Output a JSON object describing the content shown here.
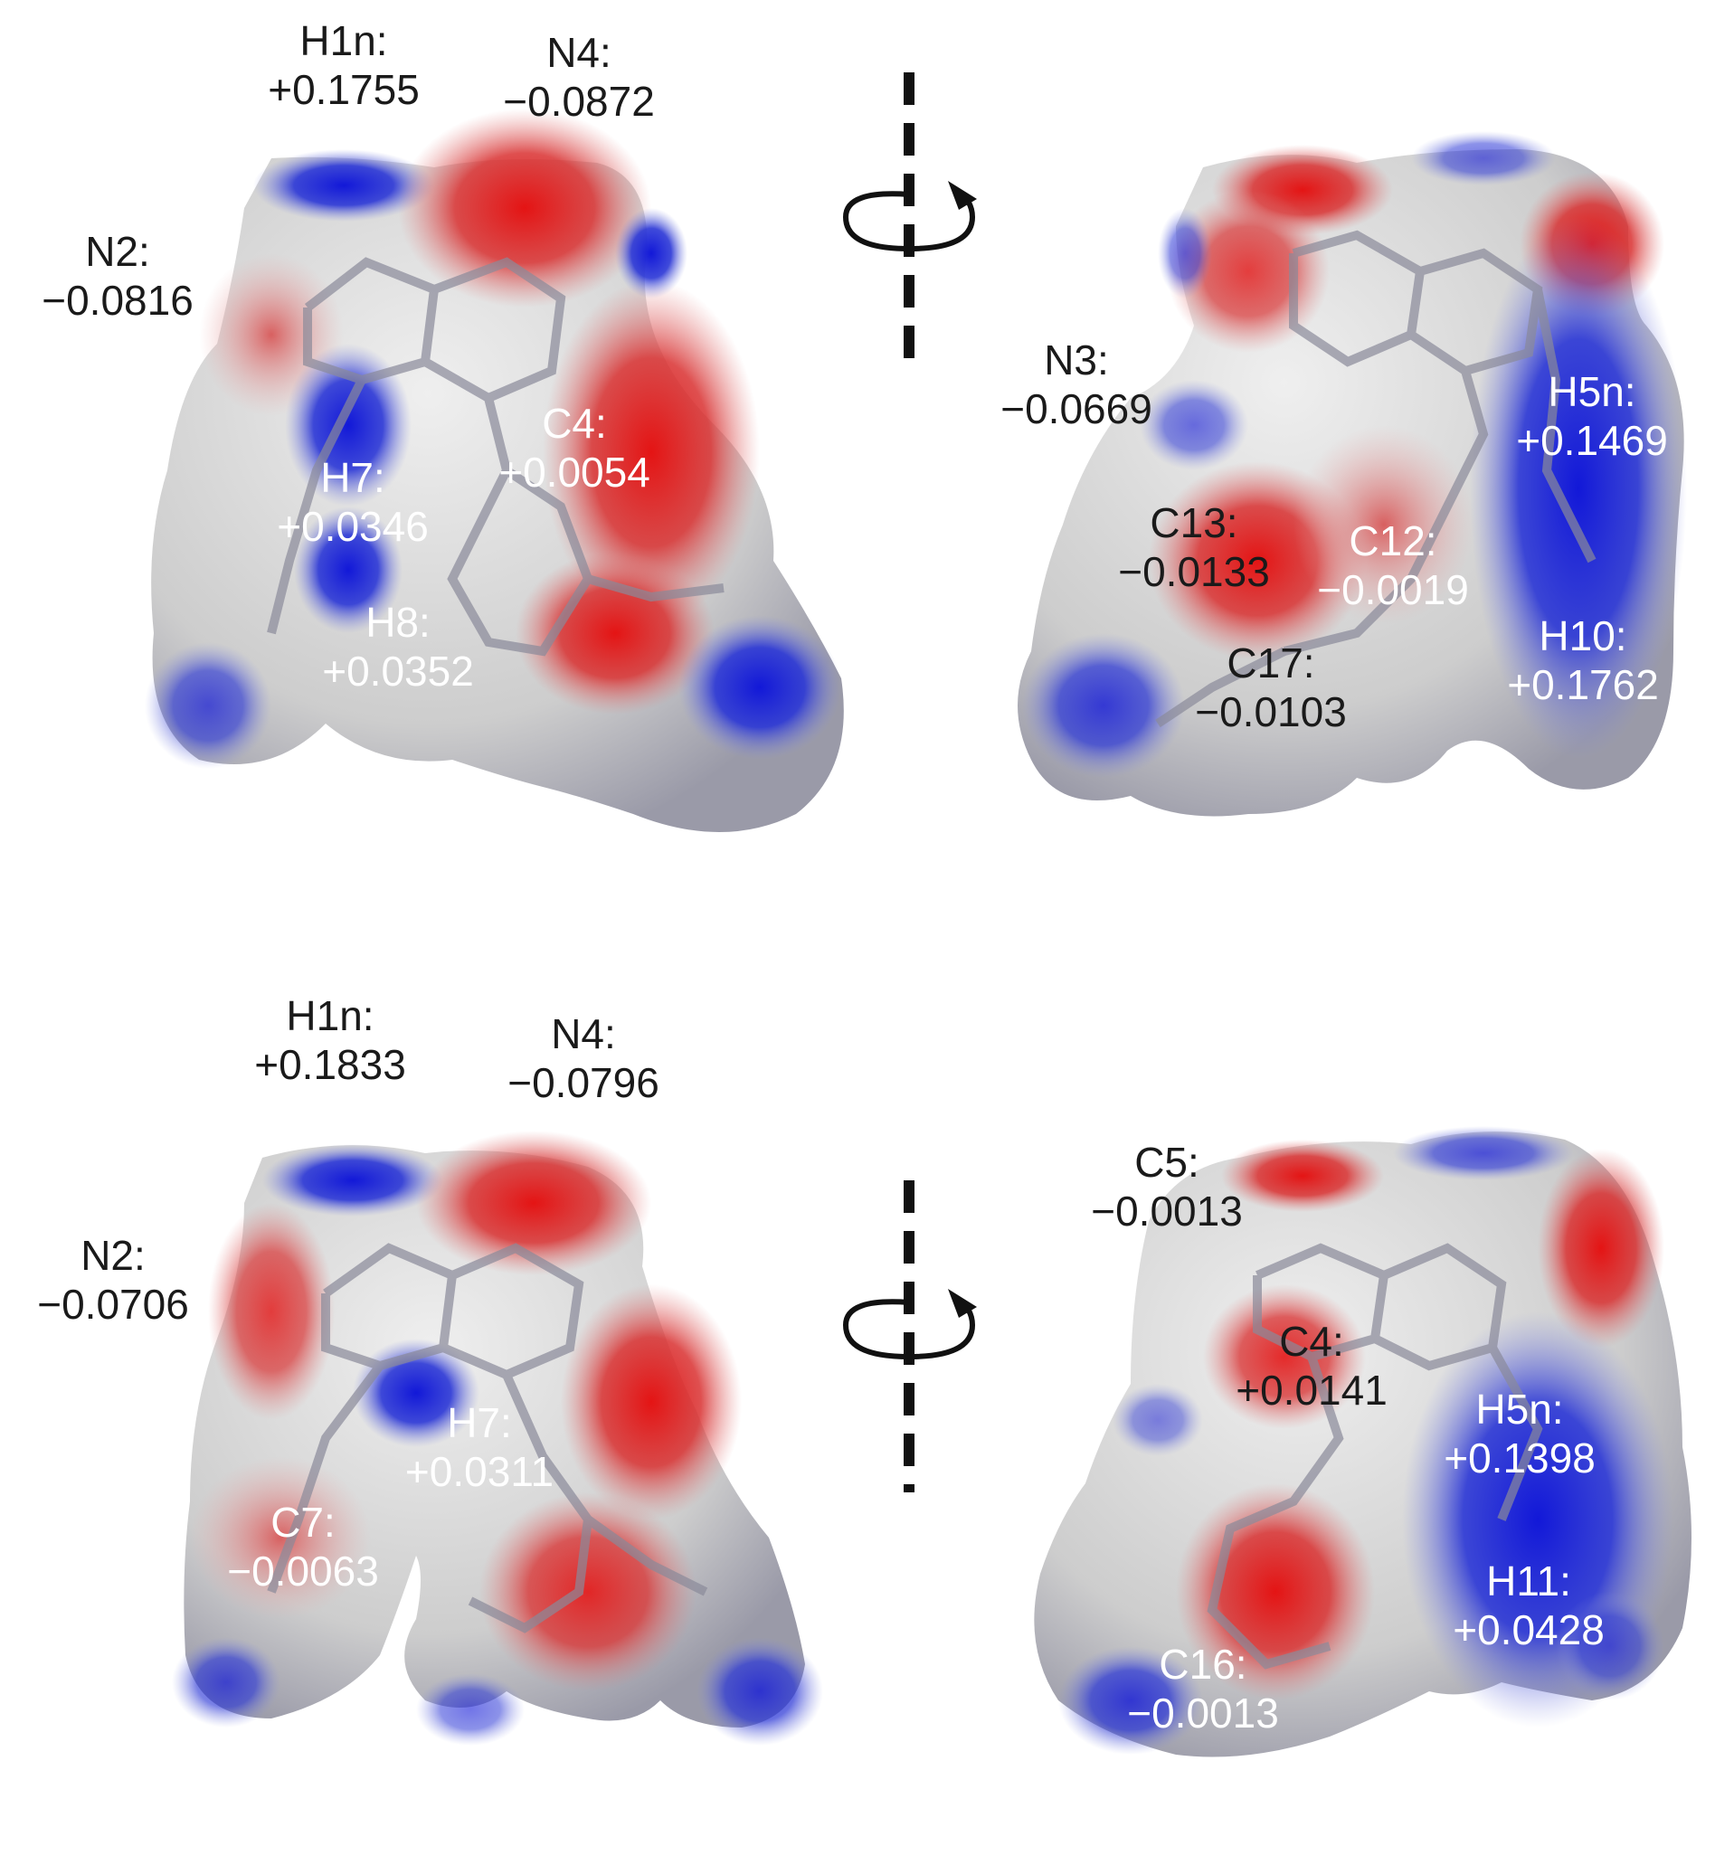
{
  "labels": {
    "p1_h1n": {
      "name": "H1n:",
      "value": "+0.1755"
    },
    "p1_n4": {
      "name": "N4:",
      "value": "−0.0872"
    },
    "p1_n2": {
      "name": "N2:",
      "value": "−0.0816"
    },
    "p1_h7": {
      "name": "H7:",
      "value": "+0.0346"
    },
    "p1_c4": {
      "name": "C4:",
      "value": "+0.0054"
    },
    "p1_h8": {
      "name": "H8:",
      "value": "+0.0352"
    },
    "p2_n3": {
      "name": "N3:",
      "value": "−0.0669"
    },
    "p2_h5n": {
      "name": "H5n:",
      "value": "+0.1469"
    },
    "p2_c13": {
      "name": "C13:",
      "value": "−0.0133"
    },
    "p2_c12": {
      "name": "C12:",
      "value": "−0.0019"
    },
    "p2_c17": {
      "name": "C17:",
      "value": "−0.0103"
    },
    "p2_h10": {
      "name": "H10:",
      "value": "+0.1762"
    },
    "p3_h1n": {
      "name": "H1n:",
      "value": "+0.1833"
    },
    "p3_n4": {
      "name": "N4:",
      "value": "−0.0796"
    },
    "p3_n2": {
      "name": "N2:",
      "value": "−0.0706"
    },
    "p3_h7": {
      "name": "H7:",
      "value": "+0.0311"
    },
    "p3_c7": {
      "name": "C7:",
      "value": "−0.0063"
    },
    "p4_c5": {
      "name": "C5:",
      "value": "−0.0013"
    },
    "p4_c4": {
      "name": "C4:",
      "value": "+0.0141"
    },
    "p4_h5n": {
      "name": "H5n:",
      "value": "+0.1398"
    },
    "p4_h11": {
      "name": "H11:",
      "value": "+0.0428"
    },
    "p4_c16": {
      "name": "C16:",
      "value": "−0.0013"
    }
  },
  "colors": {
    "positive": "#1a22d0",
    "negative": "#e01818",
    "neutral": "#d9d9d9"
  },
  "icons": [
    "rotation-axis-icon",
    "rotation-arrow-icon"
  ]
}
